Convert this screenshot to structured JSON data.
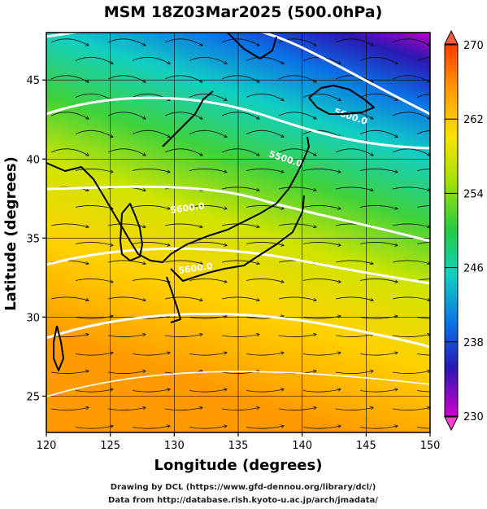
{
  "title": "MSM 18Z03Mar2025 (500.0hPa)",
  "xlabel": "Longitude (degrees)",
  "ylabel": "Latitude  (degrees)",
  "x_ticks": [
    "120",
    "125",
    "130",
    "135",
    "140",
    "145",
    "150"
  ],
  "y_ticks": [
    "25",
    "30",
    "35",
    "40",
    "45"
  ],
  "colorbar": {
    "ticks": [
      "270",
      "262",
      "254",
      "246",
      "238",
      "230"
    ],
    "min": 230,
    "max": 270
  },
  "contour_labels": [
    "5600.0",
    "5500.0",
    "5600.0",
    "5600.0"
  ],
  "footer": {
    "line1": "Drawing by DCL (https://www.gfd-dennou.org/library/dcl/)",
    "line2": "Data from http://database.rish.kyoto-u.ac.jp/arch/jmadata/"
  },
  "map": {
    "lon_range": [
      120,
      150
    ],
    "lat_range": [
      22.7,
      48
    ]
  }
}
